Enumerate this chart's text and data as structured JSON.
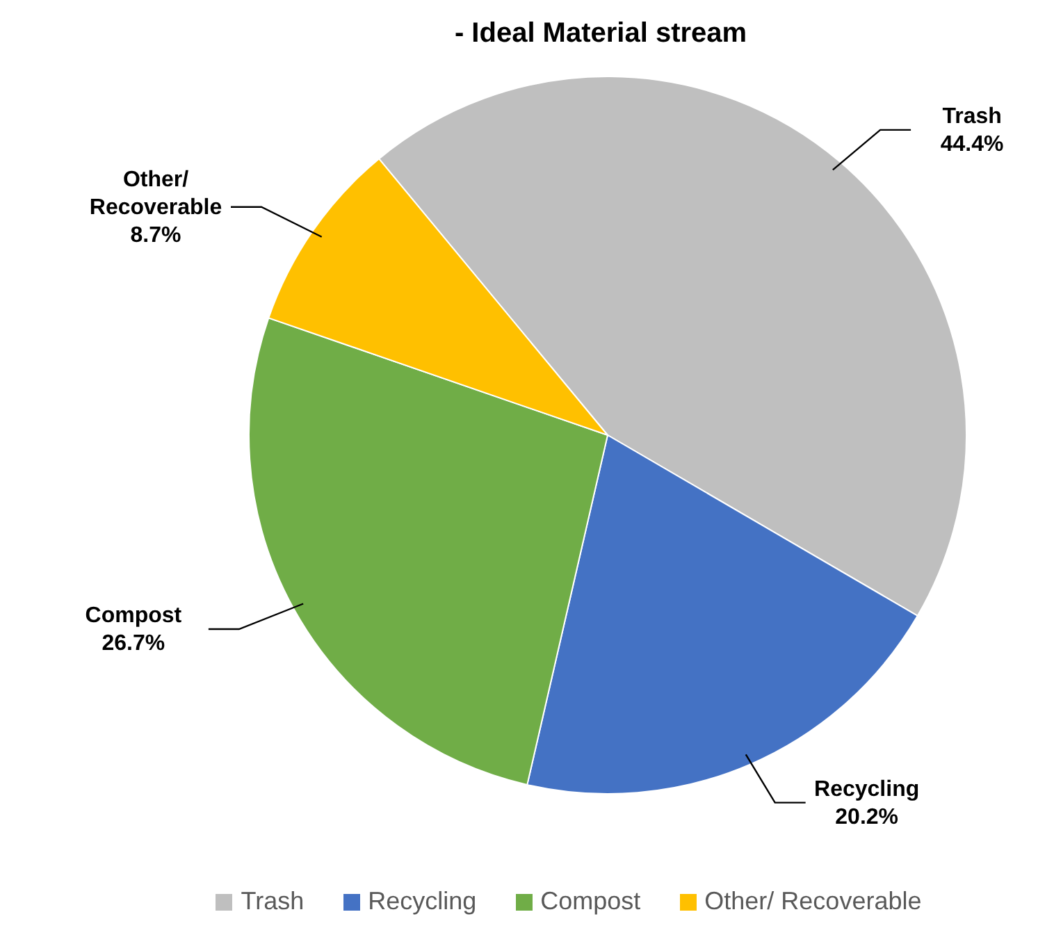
{
  "chart_data": {
    "type": "pie",
    "title": "- Ideal Material stream",
    "categories": [
      "Trash",
      "Recycling",
      "Compost",
      "Other/ Recoverable"
    ],
    "values": [
      44.4,
      20.2,
      26.7,
      8.7
    ],
    "colors": [
      "#bfbfbf",
      "#4472c4",
      "#70ad47",
      "#ffc000"
    ],
    "value_labels": [
      "44.4%",
      "20.2%",
      "26.7%",
      "8.7%"
    ],
    "legend": "bottom"
  }
}
